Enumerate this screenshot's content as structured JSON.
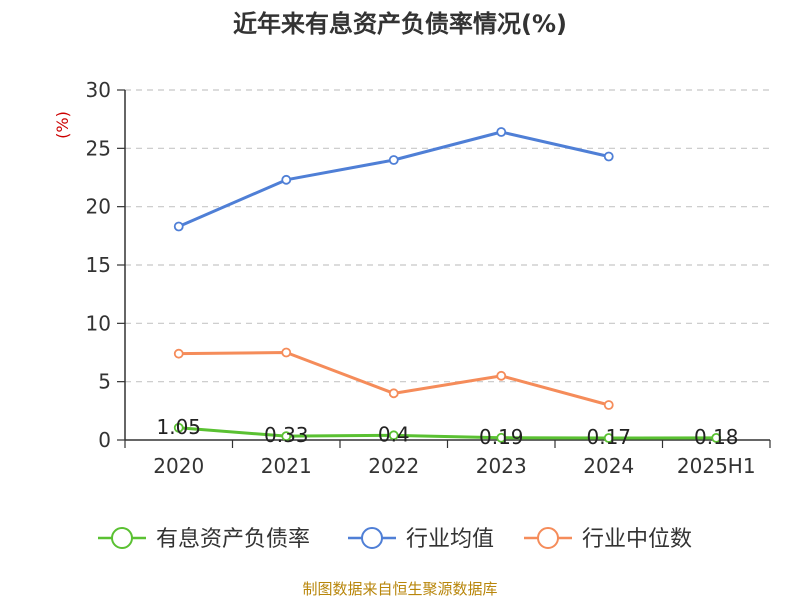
{
  "chart_data": {
    "type": "line",
    "title": "近年来有息资产负债率情况(%)",
    "ylabel": "(%)",
    "xlabel": "",
    "categories": [
      "2020",
      "2021",
      "2022",
      "2023",
      "2024",
      "2025H1"
    ],
    "ylim": [
      0,
      30
    ],
    "yticks": [
      "0",
      "5",
      "10",
      "15",
      "20",
      "25",
      "30"
    ],
    "grid": true,
    "legend_position": "bottom",
    "series": [
      {
        "name": "有息资产负债率",
        "color": "#5ac132",
        "values": [
          1.05,
          0.33,
          0.4,
          0.19,
          0.17,
          0.18
        ],
        "labels": [
          "1.05",
          "0.33",
          "0.4",
          "0.19",
          "0.17",
          "0.18"
        ]
      },
      {
        "name": "行业均值",
        "color": "#4f7fd6",
        "values": [
          18.3,
          22.3,
          24.0,
          26.4,
          24.3,
          null
        ]
      },
      {
        "name": "行业中位数",
        "color": "#f58c5a",
        "values": [
          7.4,
          7.5,
          4.0,
          5.5,
          3.0,
          null
        ]
      }
    ],
    "source": "制图数据来自恒生聚源数据库"
  }
}
